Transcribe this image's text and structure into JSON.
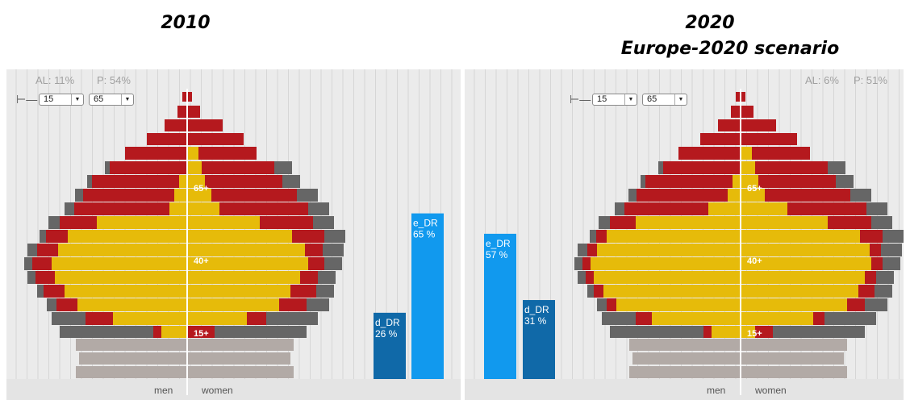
{
  "titles": {
    "left": "2010",
    "right_line1": "2020",
    "right_line2": "Europe-2020 scenario"
  },
  "controls": {
    "lower_age": "15",
    "upper_age": "65",
    "icon": "pin-icon"
  },
  "colors": {
    "working_employed": "#e6bb0a",
    "inactive": "#b5191e",
    "elderly": "#666666",
    "children": "#b2aaa6",
    "e_DR": "#1199ee",
    "d_DR": "#1069a8"
  },
  "chart_data": [
    {
      "type": "bar",
      "panel": "2010",
      "stats": {
        "AL": "AL: 11%",
        "P": "P: 54%"
      },
      "age_labels": [
        "15+",
        "40+",
        "65+"
      ],
      "axis_labels": {
        "left": "men",
        "right": "women"
      },
      "bars": [
        {
          "name": "d_DR",
          "label": "d_DR",
          "value": 26,
          "display": "26 %"
        },
        {
          "name": "e_DR",
          "label": "e_DR",
          "value": 65,
          "display": "65 %"
        }
      ]
    },
    {
      "type": "bar",
      "panel": "2020",
      "stats": {
        "AL": "AL: 6%",
        "P": "P: 51%"
      },
      "age_labels": [
        "15+",
        "40+",
        "65+"
      ],
      "axis_labels": {
        "left": "men",
        "right": "women"
      },
      "bars": [
        {
          "name": "e_DR",
          "label": "e_DR",
          "value": 57,
          "display": "57 %"
        },
        {
          "name": "d_DR",
          "label": "d_DR",
          "value": 31,
          "display": "31 %"
        }
      ]
    }
  ]
}
